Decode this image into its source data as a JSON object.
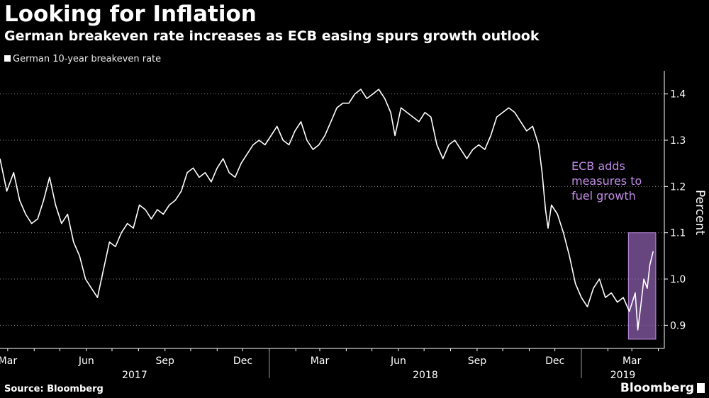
{
  "title": "Looking for Inflation",
  "subtitle": "German breakeven rate increases as ECB easing spurs growth outlook",
  "legend_label": "German 10-year breakeven rate",
  "source": "Source: Bloomberg",
  "brand": "Bloomberg",
  "colors": {
    "background": "#000000",
    "line": "#ffffff",
    "annotation": "#c28de8",
    "highlight": "#8a5ca8",
    "grid": "#8a8a8a"
  },
  "chart_data": {
    "type": "line",
    "title": "Looking for Inflation",
    "subtitle": "German breakeven rate increases as ECB easing spurs growth outlook",
    "ylabel": "Percent",
    "ylim": [
      0.85,
      1.45
    ],
    "y_ticks": [
      "0.9",
      "1.0",
      "1.1",
      "1.2",
      "1.3",
      "1.4"
    ],
    "x_ticks": [
      "Mar",
      "Jun",
      "Sep",
      "Dec",
      "Mar",
      "Jun",
      "Sep",
      "Dec",
      "Mar"
    ],
    "year_labels": [
      "2017",
      "2018",
      "2019"
    ],
    "grid": "horizontal dotted",
    "legend_position": "top-left",
    "series": [
      {
        "name": "German 10-year breakeven rate",
        "points": [
          [
            "2017-02-20",
            1.26
          ],
          [
            "2017-02-28",
            1.19
          ],
          [
            "2017-03-08",
            1.23
          ],
          [
            "2017-03-15",
            1.17
          ],
          [
            "2017-03-22",
            1.14
          ],
          [
            "2017-03-29",
            1.12
          ],
          [
            "2017-04-05",
            1.13
          ],
          [
            "2017-04-12",
            1.17
          ],
          [
            "2017-04-19",
            1.22
          ],
          [
            "2017-04-26",
            1.16
          ],
          [
            "2017-05-03",
            1.12
          ],
          [
            "2017-05-10",
            1.14
          ],
          [
            "2017-05-17",
            1.08
          ],
          [
            "2017-05-24",
            1.05
          ],
          [
            "2017-05-31",
            1.0
          ],
          [
            "2017-06-07",
            0.98
          ],
          [
            "2017-06-14",
            0.96
          ],
          [
            "2017-06-21",
            1.02
          ],
          [
            "2017-06-28",
            1.08
          ],
          [
            "2017-07-05",
            1.07
          ],
          [
            "2017-07-12",
            1.1
          ],
          [
            "2017-07-19",
            1.12
          ],
          [
            "2017-07-26",
            1.11
          ],
          [
            "2017-08-02",
            1.16
          ],
          [
            "2017-08-09",
            1.15
          ],
          [
            "2017-08-16",
            1.13
          ],
          [
            "2017-08-23",
            1.15
          ],
          [
            "2017-08-30",
            1.14
          ],
          [
            "2017-09-06",
            1.16
          ],
          [
            "2017-09-13",
            1.17
          ],
          [
            "2017-09-20",
            1.19
          ],
          [
            "2017-09-27",
            1.23
          ],
          [
            "2017-10-04",
            1.24
          ],
          [
            "2017-10-11",
            1.22
          ],
          [
            "2017-10-18",
            1.23
          ],
          [
            "2017-10-25",
            1.21
          ],
          [
            "2017-11-01",
            1.24
          ],
          [
            "2017-11-08",
            1.26
          ],
          [
            "2017-11-15",
            1.23
          ],
          [
            "2017-11-22",
            1.22
          ],
          [
            "2017-11-29",
            1.25
          ],
          [
            "2017-12-06",
            1.27
          ],
          [
            "2017-12-13",
            1.29
          ],
          [
            "2017-12-20",
            1.3
          ],
          [
            "2017-12-27",
            1.29
          ],
          [
            "2018-01-03",
            1.31
          ],
          [
            "2018-01-10",
            1.33
          ],
          [
            "2018-01-17",
            1.3
          ],
          [
            "2018-01-24",
            1.29
          ],
          [
            "2018-01-31",
            1.32
          ],
          [
            "2018-02-07",
            1.34
          ],
          [
            "2018-02-14",
            1.3
          ],
          [
            "2018-02-21",
            1.28
          ],
          [
            "2018-02-28",
            1.29
          ],
          [
            "2018-03-07",
            1.31
          ],
          [
            "2018-03-14",
            1.34
          ],
          [
            "2018-03-21",
            1.37
          ],
          [
            "2018-03-28",
            1.38
          ],
          [
            "2018-04-04",
            1.38
          ],
          [
            "2018-04-11",
            1.4
          ],
          [
            "2018-04-18",
            1.41
          ],
          [
            "2018-04-25",
            1.39
          ],
          [
            "2018-05-02",
            1.4
          ],
          [
            "2018-05-09",
            1.41
          ],
          [
            "2018-05-16",
            1.39
          ],
          [
            "2018-05-23",
            1.36
          ],
          [
            "2018-05-28",
            1.31
          ],
          [
            "2018-06-04",
            1.37
          ],
          [
            "2018-06-11",
            1.36
          ],
          [
            "2018-06-18",
            1.35
          ],
          [
            "2018-06-25",
            1.34
          ],
          [
            "2018-07-02",
            1.36
          ],
          [
            "2018-07-09",
            1.35
          ],
          [
            "2018-07-16",
            1.29
          ],
          [
            "2018-07-23",
            1.26
          ],
          [
            "2018-07-30",
            1.29
          ],
          [
            "2018-08-06",
            1.3
          ],
          [
            "2018-08-13",
            1.28
          ],
          [
            "2018-08-20",
            1.26
          ],
          [
            "2018-08-27",
            1.28
          ],
          [
            "2018-09-03",
            1.29
          ],
          [
            "2018-09-10",
            1.28
          ],
          [
            "2018-09-17",
            1.31
          ],
          [
            "2018-09-24",
            1.35
          ],
          [
            "2018-10-01",
            1.36
          ],
          [
            "2018-10-08",
            1.37
          ],
          [
            "2018-10-15",
            1.36
          ],
          [
            "2018-10-22",
            1.34
          ],
          [
            "2018-10-29",
            1.32
          ],
          [
            "2018-11-05",
            1.33
          ],
          [
            "2018-11-12",
            1.29
          ],
          [
            "2018-11-16",
            1.23
          ],
          [
            "2018-11-20",
            1.15
          ],
          [
            "2018-11-23",
            1.11
          ],
          [
            "2018-11-27",
            1.16
          ],
          [
            "2018-12-04",
            1.14
          ],
          [
            "2018-12-11",
            1.1
          ],
          [
            "2018-12-18",
            1.05
          ],
          [
            "2018-12-25",
            0.99
          ],
          [
            "2019-01-01",
            0.96
          ],
          [
            "2019-01-08",
            0.94
          ],
          [
            "2019-01-15",
            0.98
          ],
          [
            "2019-01-22",
            1.0
          ],
          [
            "2019-01-29",
            0.96
          ],
          [
            "2019-02-05",
            0.97
          ],
          [
            "2019-02-12",
            0.95
          ],
          [
            "2019-02-19",
            0.96
          ],
          [
            "2019-02-26",
            0.93
          ],
          [
            "2019-03-05",
            0.97
          ],
          [
            "2019-03-08",
            0.89
          ],
          [
            "2019-03-12",
            0.95
          ],
          [
            "2019-03-15",
            1.0
          ],
          [
            "2019-03-19",
            0.98
          ],
          [
            "2019-03-22",
            1.03
          ],
          [
            "2019-03-26",
            1.06
          ]
        ]
      }
    ],
    "annotation": {
      "text": [
        "ECB adds",
        "measures to",
        "fuel growth"
      ],
      "highlight_range": {
        "x": [
          "2019-02-25",
          "2019-03-29"
        ],
        "y": [
          0.87,
          1.1
        ]
      }
    }
  }
}
